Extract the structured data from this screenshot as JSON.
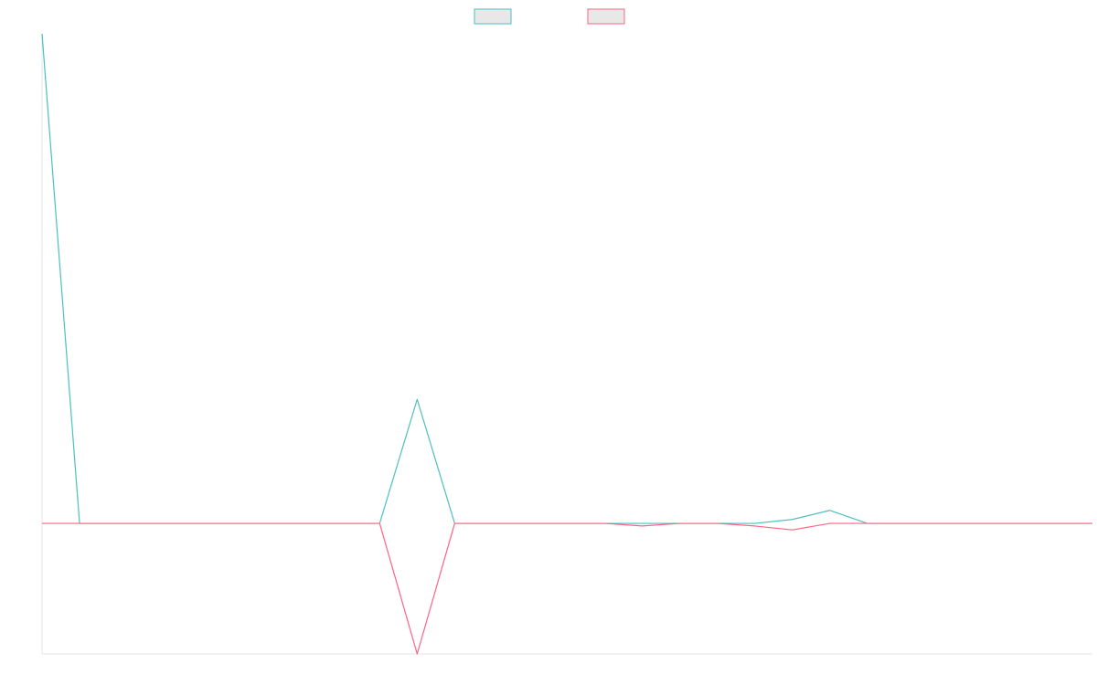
{
  "chart_data": {
    "type": "line",
    "title": "",
    "xlabel": "",
    "ylabel": "",
    "x": [
      0,
      1,
      2,
      3,
      4,
      5,
      6,
      7,
      8,
      9,
      10,
      11,
      12,
      13,
      14,
      15,
      16,
      17,
      18,
      19,
      20,
      21,
      22,
      23,
      24,
      25,
      26,
      27,
      28
    ],
    "series": [
      {
        "color": "#4bc0c0",
        "legend_fill": "#e8e8e8",
        "values": [
          375,
          0,
          0,
          0,
          0,
          0,
          0,
          0,
          0,
          0,
          95,
          0,
          0,
          0,
          0,
          0,
          0,
          0,
          0,
          0,
          3,
          10,
          0,
          0,
          0,
          0,
          0,
          0,
          0
        ]
      },
      {
        "color": "#ff6384",
        "legend_fill": "#e8e8e8",
        "values": [
          0,
          0,
          0,
          0,
          0,
          0,
          0,
          0,
          0,
          0,
          -100,
          0,
          0,
          0,
          0,
          0,
          -2,
          0,
          0,
          -2,
          -5,
          0,
          0,
          0,
          0,
          0,
          0,
          0,
          0
        ]
      }
    ],
    "ylim": [
      -100,
      375
    ],
    "grid": false,
    "legend": "top-center"
  }
}
